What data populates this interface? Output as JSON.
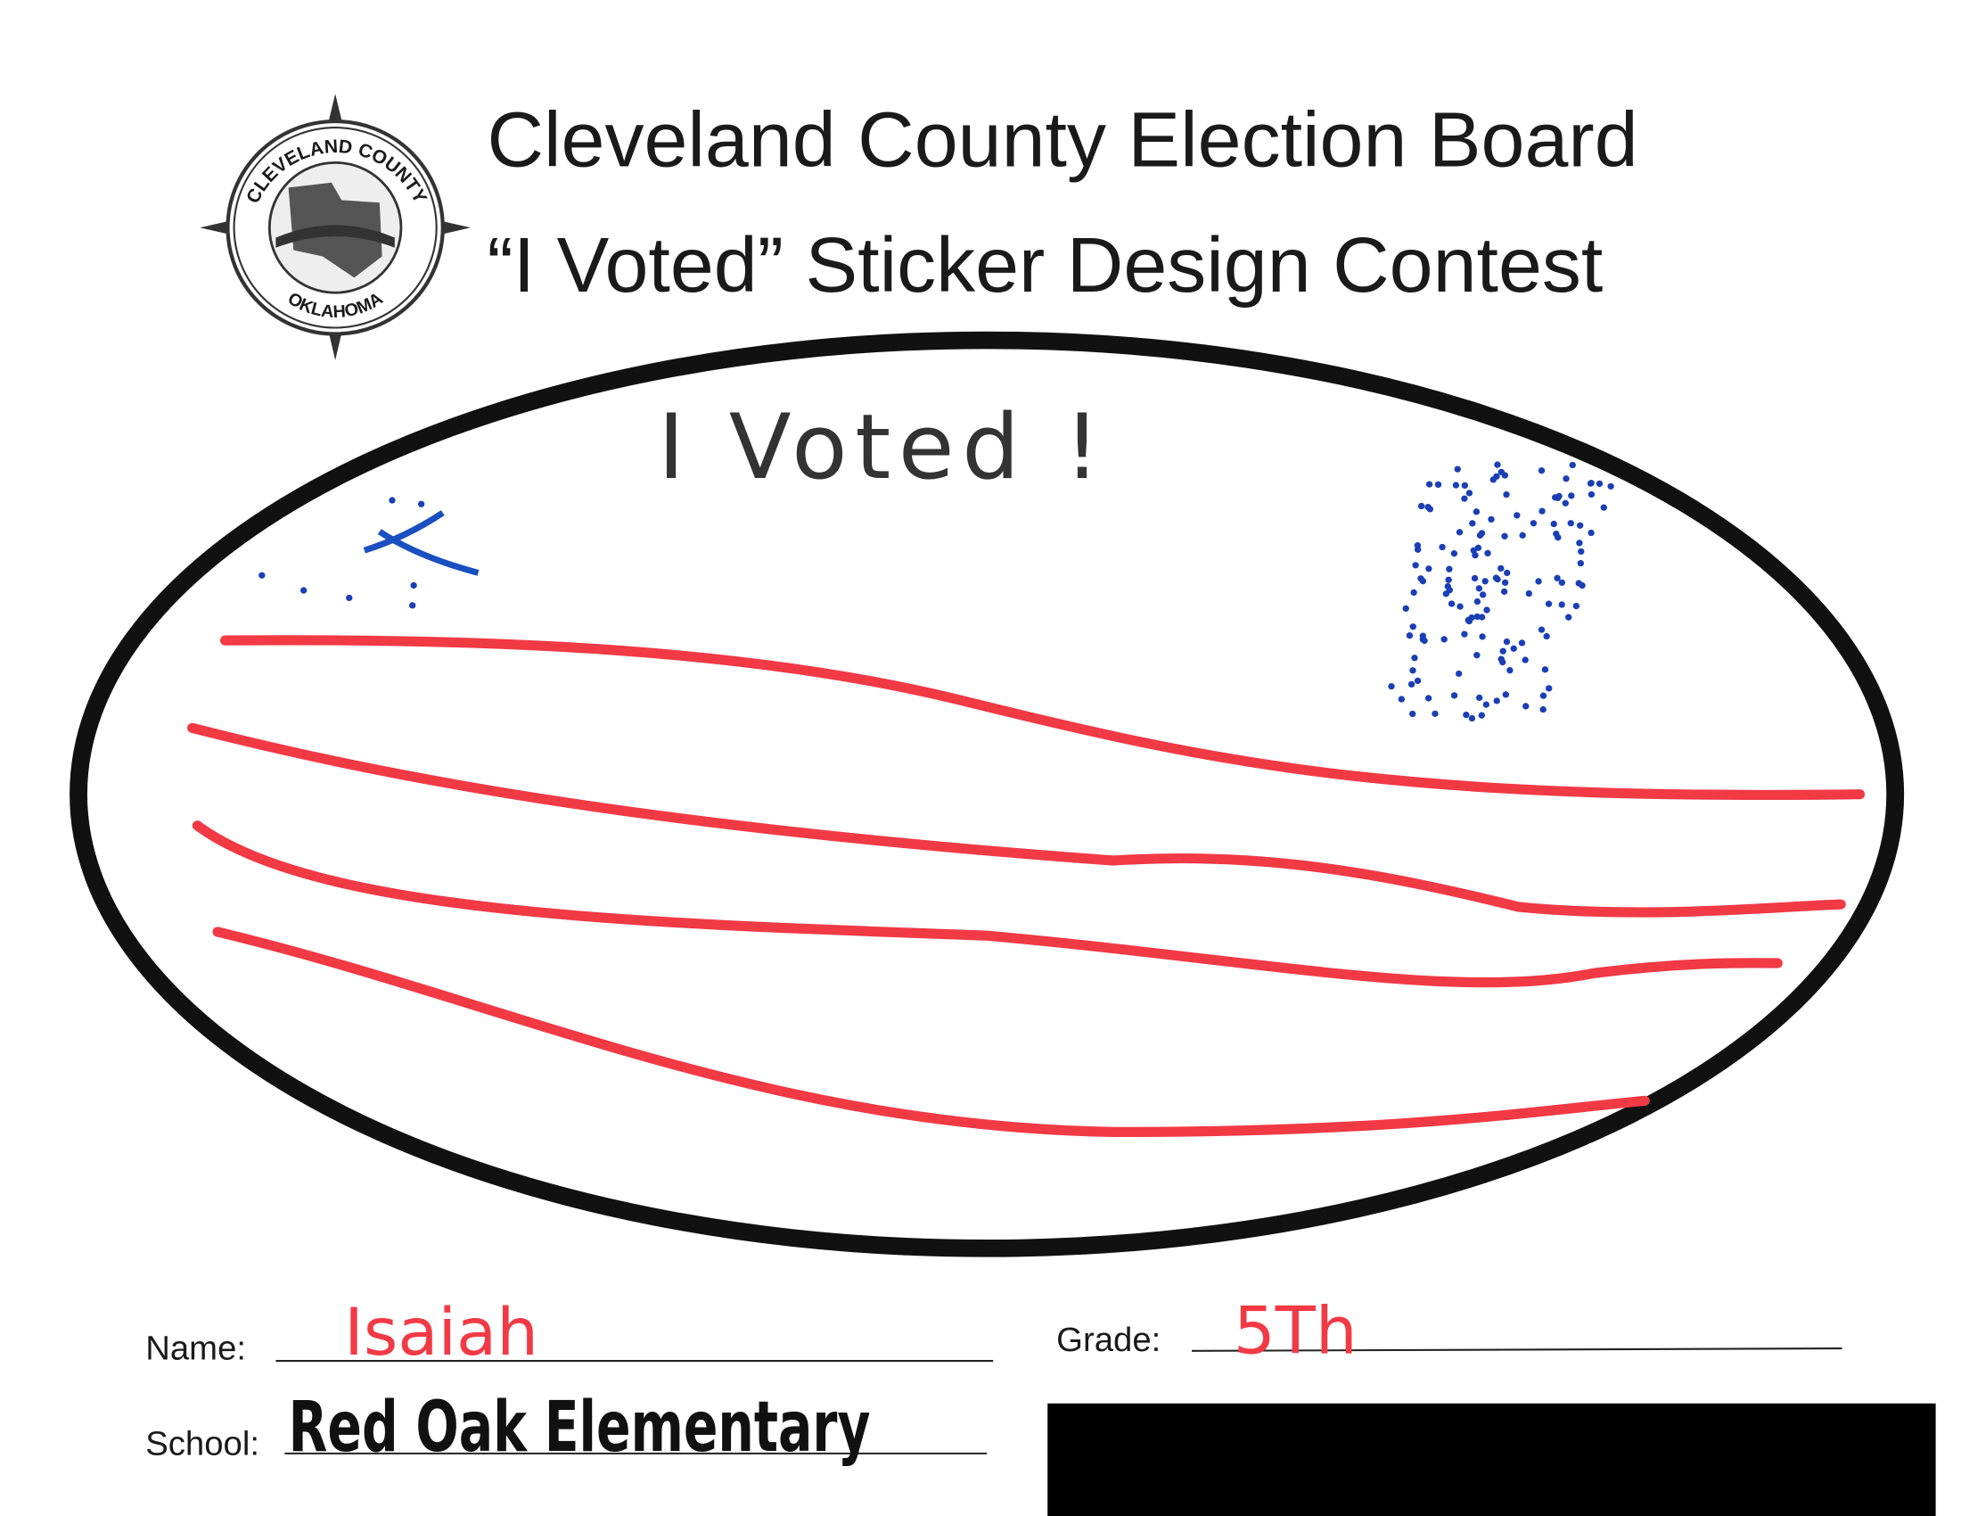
{
  "header": {
    "title": "Cleveland County Election Board",
    "subtitle": "“I Voted” Sticker Design Contest",
    "seal": {
      "top": "CLEVELAND COUNTY",
      "bottom": "OKLAHOMA"
    }
  },
  "drawing": {
    "text": "I Voted !"
  },
  "form": {
    "name_label": "Name:",
    "name_value": "Isaiah",
    "grade_label": "Grade:",
    "grade_value": "5Th",
    "school_label": "School:",
    "school_value": "Red Oak Elementary"
  }
}
